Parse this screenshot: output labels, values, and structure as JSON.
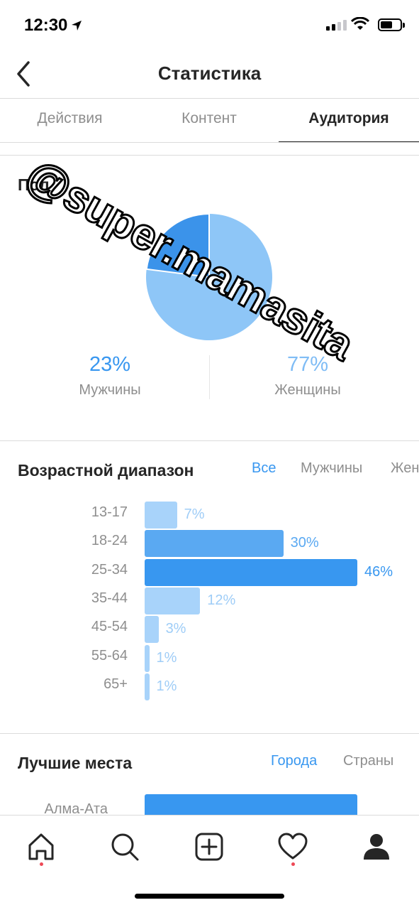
{
  "status_bar": {
    "time": "12:30"
  },
  "header": {
    "title": "Статистика"
  },
  "tabs": [
    {
      "label": "Действия",
      "active": false
    },
    {
      "label": "Контент",
      "active": false
    },
    {
      "label": "Аудитория",
      "active": true
    }
  ],
  "gender": {
    "title": "Пол",
    "men": {
      "percent": "23%",
      "label": "Мужчины",
      "value": 23
    },
    "women": {
      "percent": "77%",
      "label": "Женщины",
      "value": 77
    },
    "colors": {
      "men": "#3b93ea",
      "women": "#8ec6f7"
    }
  },
  "age": {
    "title": "Возрастной диапазон",
    "filters": [
      "Все",
      "Мужчины",
      "Жен"
    ],
    "active_filter": "Все",
    "ranges": [
      {
        "label": "13-17",
        "percent": "7%"
      },
      {
        "label": "18-24",
        "percent": "30%"
      },
      {
        "label": "25-34",
        "percent": "46%"
      },
      {
        "label": "35-44",
        "percent": "12%"
      },
      {
        "label": "45-54",
        "percent": "3%"
      },
      {
        "label": "55-64",
        "percent": "1%"
      },
      {
        "label": "65+",
        "percent": "1%"
      }
    ]
  },
  "places": {
    "title": "Лучшие места",
    "filters": [
      "Города",
      "Страны"
    ],
    "active_filter": "Города",
    "cities": [
      {
        "label": "Алма-Ата"
      }
    ]
  },
  "chart_data": [
    {
      "type": "pie",
      "title": "Пол",
      "categories": [
        "Мужчины",
        "Женщины"
      ],
      "values": [
        23,
        77
      ]
    },
    {
      "type": "bar",
      "title": "Возрастной диапазон",
      "categories": [
        "13-17",
        "18-24",
        "25-34",
        "35-44",
        "45-54",
        "55-64",
        "65+"
      ],
      "values": [
        7,
        30,
        46,
        12,
        3,
        1,
        1
      ]
    }
  ],
  "watermark": "@super.mamasita",
  "bottom_nav": [
    {
      "icon": "home-icon",
      "badge": true
    },
    {
      "icon": "search-icon",
      "badge": false
    },
    {
      "icon": "add-post-icon",
      "badge": false
    },
    {
      "icon": "heart-icon",
      "badge": true
    },
    {
      "icon": "profile-icon",
      "badge": false
    }
  ]
}
